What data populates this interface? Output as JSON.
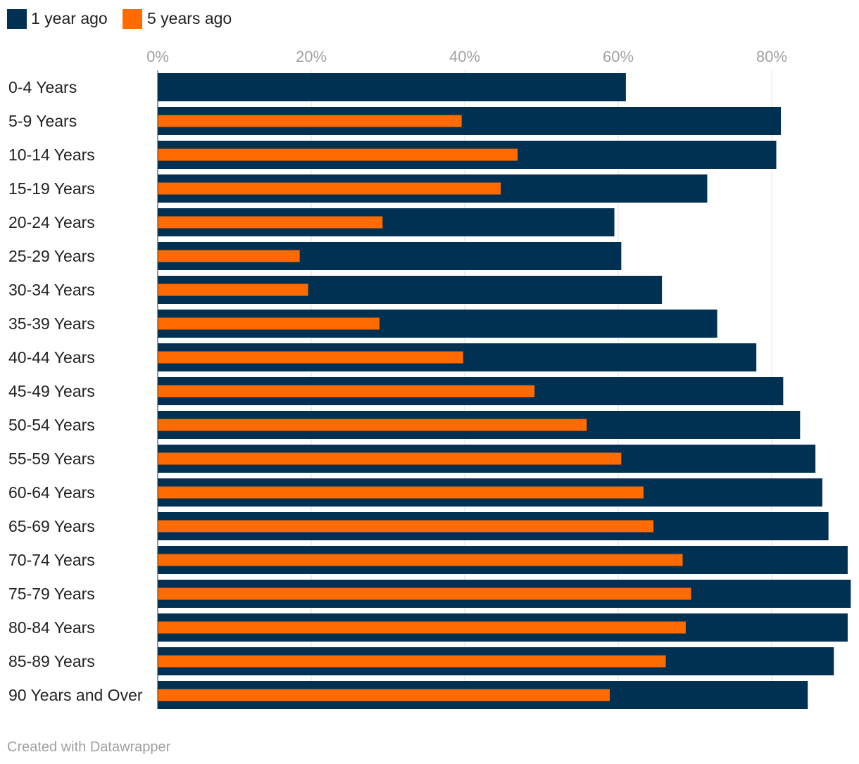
{
  "chart_data": {
    "type": "bar",
    "orientation": "horizontal",
    "title": "",
    "xlabel": "",
    "ylabel": "",
    "xlim": [
      0,
      90
    ],
    "x_ticks": [
      0,
      20,
      40,
      60,
      80
    ],
    "x_tick_labels": [
      "0%",
      "20%",
      "40%",
      "60%",
      "80%"
    ],
    "grid": true,
    "legend_position": "top-left",
    "categories": [
      "0-4 Years",
      "5-9 Years",
      "10-14 Years",
      "15-19 Years",
      "20-24 Years",
      "25-29 Years",
      "30-34 Years",
      "35-39 Years",
      "40-44 Years",
      "45-49 Years",
      "50-54 Years",
      "55-59 Years",
      "60-64 Years",
      "65-69 Years",
      "70-74 Years",
      "75-79 Years",
      "80-84 Years",
      "85-89 Years",
      "90 Years and Over"
    ],
    "series": [
      {
        "name": "1 year ago",
        "color": "#003153",
        "values": [
          61.0,
          81.2,
          80.6,
          71.6,
          59.5,
          60.4,
          65.7,
          72.9,
          78.0,
          81.5,
          83.7,
          85.7,
          86.6,
          87.4,
          89.9,
          90.3,
          89.9,
          88.1,
          84.7
        ]
      },
      {
        "name": "5 years ago",
        "color": "#ff6b00",
        "values": [
          null,
          39.6,
          46.9,
          44.7,
          29.3,
          18.5,
          19.6,
          28.9,
          39.8,
          49.1,
          55.9,
          60.4,
          63.3,
          64.6,
          68.4,
          69.5,
          68.8,
          66.2,
          58.9
        ]
      }
    ]
  },
  "footer": {
    "credit": "Created with Datawrapper"
  }
}
